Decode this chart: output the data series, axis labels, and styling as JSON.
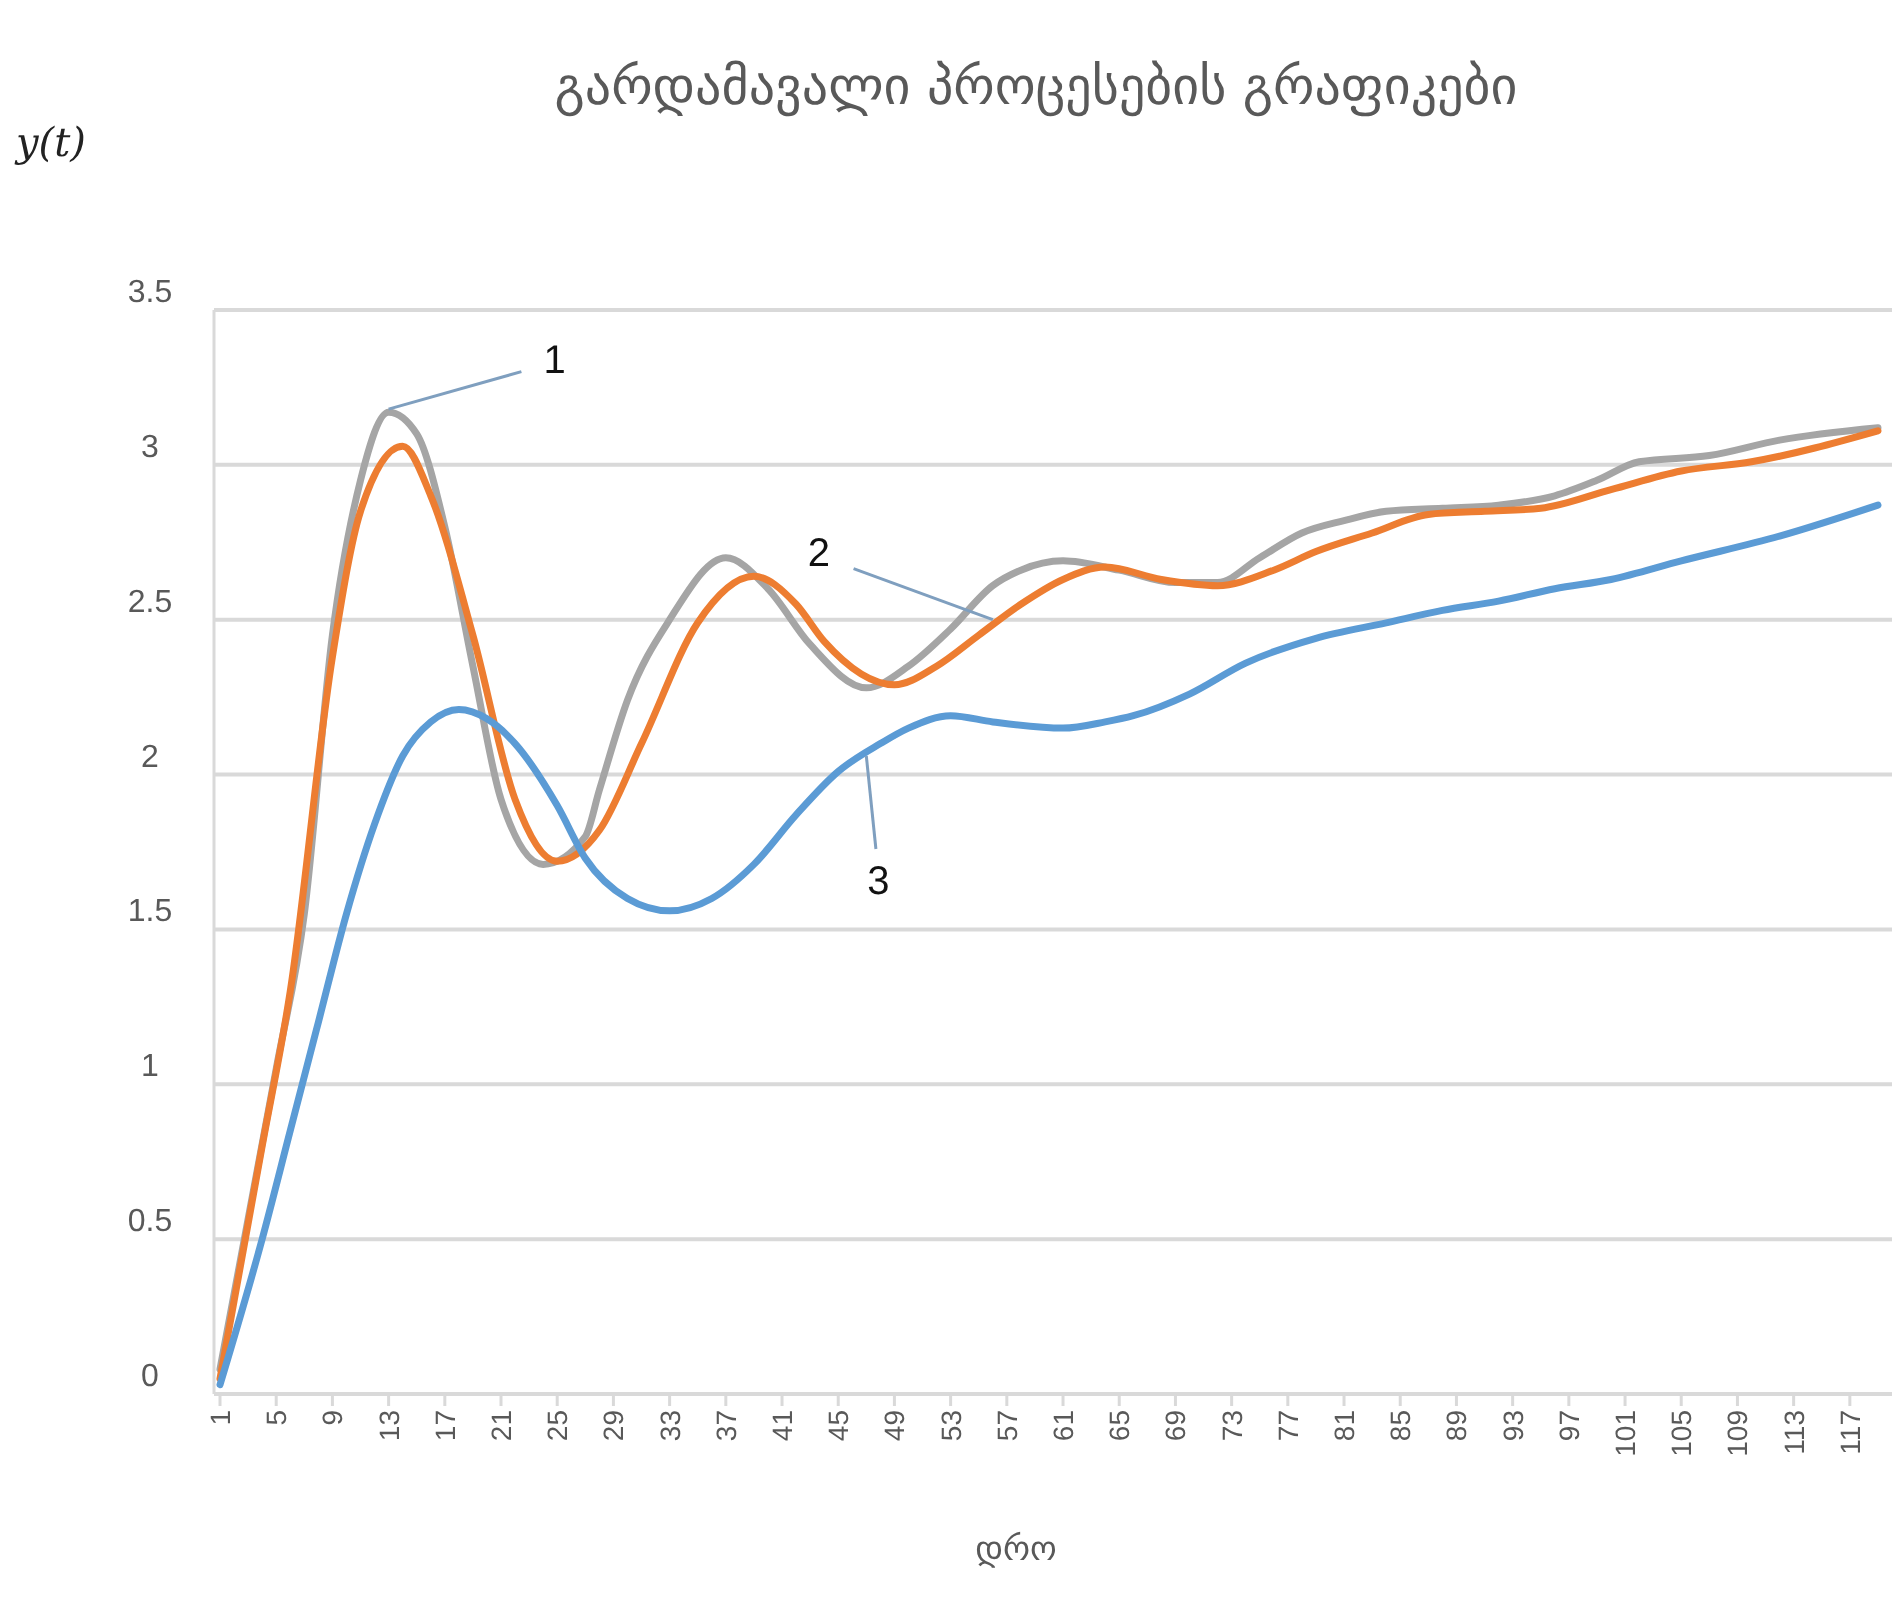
{
  "chart_data": {
    "type": "line",
    "title": "გარდამავალი პროცესების გრაფიკები",
    "xlabel": "დრო",
    "ylabel": "y(t)",
    "xlim": [
      1,
      120
    ],
    "xticks": [
      1,
      5,
      9,
      13,
      17,
      21,
      25,
      29,
      33,
      37,
      41,
      45,
      49,
      53,
      57,
      61,
      65,
      69,
      73,
      77,
      81,
      85,
      89,
      93,
      97,
      101,
      105,
      109,
      113,
      117
    ],
    "ylim": [
      0,
      3.5
    ],
    "yticks": [
      0,
      0.5,
      1,
      1.5,
      2,
      2.5,
      3,
      3.5
    ],
    "grid": "y",
    "marker": "none",
    "line_style": "solid",
    "series": [
      {
        "color": "#a5a5a5",
        "x": [
          1,
          5,
          7,
          9,
          11,
          13,
          15,
          17,
          19,
          21,
          24,
          27,
          28,
          30,
          33,
          37,
          40,
          43,
          47,
          50,
          53,
          56,
          58,
          61,
          65,
          69,
          72,
          75,
          78,
          81,
          84,
          88,
          92,
          96,
          99,
          102,
          107,
          112,
          119
        ],
        "values": [
          0.08,
          1.05,
          1.55,
          2.45,
          2.95,
          3.17,
          3.1,
          2.8,
          2.35,
          1.92,
          1.71,
          1.8,
          1.95,
          2.24,
          2.5,
          2.7,
          2.6,
          2.42,
          2.28,
          2.35,
          2.47,
          2.61,
          2.66,
          2.69,
          2.66,
          2.62,
          2.62,
          2.7,
          2.78,
          2.82,
          2.85,
          2.86,
          2.87,
          2.9,
          2.95,
          3.01,
          3.03,
          3.08,
          3.12
        ]
      },
      {
        "color": "#ed7d31",
        "x": [
          1,
          2,
          4,
          6,
          9,
          11,
          14,
          16,
          19,
          22,
          25,
          28,
          31,
          35,
          39,
          42,
          44,
          49,
          52,
          55,
          58,
          61,
          64,
          68,
          72,
          76,
          79,
          83,
          87,
          91,
          95,
          100,
          105,
          110,
          119
        ],
        "values": [
          0.05,
          0.3,
          0.8,
          1.3,
          2.38,
          2.85,
          3.06,
          2.9,
          2.45,
          1.92,
          1.72,
          1.82,
          2.1,
          2.49,
          2.64,
          2.55,
          2.43,
          2.29,
          2.35,
          2.45,
          2.55,
          2.63,
          2.67,
          2.63,
          2.61,
          2.66,
          2.72,
          2.78,
          2.84,
          2.85,
          2.86,
          2.92,
          2.98,
          3.01,
          3.11
        ]
      },
      {
        "color": "#5b9bd5",
        "x": [
          1,
          4,
          6,
          8,
          10,
          12,
          14,
          16,
          18,
          20,
          22,
          25,
          27,
          30,
          33,
          36,
          39,
          42,
          45,
          48,
          50,
          53,
          56,
          61,
          64,
          66,
          70,
          74,
          79,
          84,
          88,
          92,
          96,
          100,
          105,
          112,
          119
        ],
        "values": [
          0.03,
          0.5,
          0.85,
          1.2,
          1.55,
          1.84,
          2.06,
          2.17,
          2.21,
          2.18,
          2.1,
          1.9,
          1.73,
          1.6,
          1.56,
          1.6,
          1.71,
          1.87,
          2.01,
          2.1,
          2.15,
          2.19,
          2.17,
          2.15,
          2.17,
          2.19,
          2.26,
          2.36,
          2.44,
          2.49,
          2.53,
          2.56,
          2.6,
          2.63,
          2.69,
          2.77,
          2.87
        ]
      }
    ],
    "annotations": [
      {
        "text": "1",
        "x": 13,
        "y": 3.18
      },
      {
        "text": "2",
        "x": 56,
        "y": 2.5
      },
      {
        "text": "3",
        "x": 47,
        "y": 2.06
      }
    ]
  }
}
